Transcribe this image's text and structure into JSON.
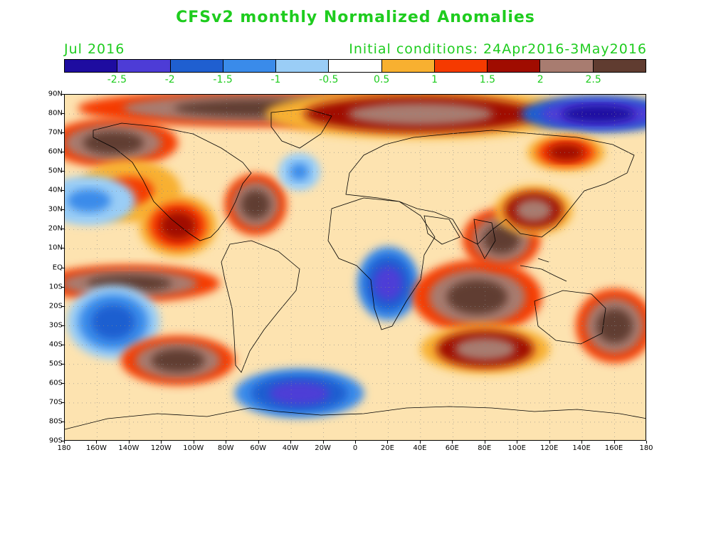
{
  "title": "CFSv2 monthly Normalized Anomalies",
  "subtitle_left": "Jul 2016",
  "subtitle_right": "Initial conditions: 24Apr2016-3May2016",
  "colorbar": {
    "colors": [
      "#1e0ca0",
      "#4d3cd6",
      "#1f5fd0",
      "#3a8bea",
      "#9acdf6",
      "#ffffff",
      "#f8b030",
      "#f53a00",
      "#a00c00",
      "#a87c70",
      "#603c30"
    ],
    "labels": [
      "-2.5",
      "-2",
      "-1.5",
      "-1",
      "-0.5",
      "0.5",
      "1",
      "1.5",
      "2",
      "2.5"
    ]
  },
  "lat_labels": [
    "90N",
    "80N",
    "70N",
    "60N",
    "50N",
    "40N",
    "30N",
    "20N",
    "10N",
    "EQ",
    "10S",
    "20S",
    "30S",
    "40S",
    "50S",
    "60S",
    "70S",
    "80S",
    "90S"
  ],
  "lon_labels": [
    "180",
    "160W",
    "140W",
    "120W",
    "100W",
    "80W",
    "60W",
    "40W",
    "20W",
    "0",
    "20E",
    "40E",
    "60E",
    "80E",
    "100E",
    "120E",
    "140E",
    "160E",
    "180"
  ],
  "anomaly_regions": [
    {
      "name": "arctic-warm",
      "lon": -60,
      "lat": 83,
      "rx": 70,
      "ry": 6,
      "level": 10
    },
    {
      "name": "arctic-siberia-warm",
      "lon": 40,
      "lat": 80,
      "rx": 60,
      "ry": 8,
      "level": 9
    },
    {
      "name": "arctic-east-cold",
      "lon": 150,
      "lat": 80,
      "rx": 30,
      "ry": 6,
      "level": 0
    },
    {
      "name": "alaska-warm",
      "lon": -150,
      "lat": 65,
      "rx": 25,
      "ry": 8,
      "level": 10
    },
    {
      "name": "ne-pacific-warm",
      "lon": -140,
      "lat": 40,
      "rx": 20,
      "ry": 10,
      "level": 7
    },
    {
      "name": "n-pacific-cold",
      "lon": -165,
      "lat": 35,
      "rx": 18,
      "ry": 8,
      "level": 3
    },
    {
      "name": "mexico-warm",
      "lon": -110,
      "lat": 22,
      "rx": 15,
      "ry": 10,
      "level": 8
    },
    {
      "name": "nw-atlantic-warm",
      "lon": -62,
      "lat": 33,
      "rx": 12,
      "ry": 10,
      "level": 10
    },
    {
      "name": "tropical-pacific-warm",
      "lon": -140,
      "lat": -8,
      "rx": 35,
      "ry": 6,
      "level": 10
    },
    {
      "name": "se-pacific-cold",
      "lon": -150,
      "lat": -28,
      "rx": 18,
      "ry": 12,
      "level": 2
    },
    {
      "name": "s-pacific-warm",
      "lon": -110,
      "lat": -48,
      "rx": 22,
      "ry": 8,
      "level": 10
    },
    {
      "name": "s-atlantic-cold",
      "lon": -35,
      "lat": -65,
      "rx": 25,
      "ry": 8,
      "level": 1
    },
    {
      "name": "africa-cold",
      "lon": 20,
      "lat": -8,
      "rx": 12,
      "ry": 12,
      "level": 1
    },
    {
      "name": "indian-ocean-warm",
      "lon": 75,
      "lat": -15,
      "rx": 25,
      "ry": 12,
      "level": 10
    },
    {
      "name": "s-indian-warm",
      "lon": 80,
      "lat": -42,
      "rx": 25,
      "ry": 8,
      "level": 9
    },
    {
      "name": "india-warm",
      "lon": 90,
      "lat": 15,
      "rx": 15,
      "ry": 10,
      "level": 10
    },
    {
      "name": "china-warm",
      "lon": 110,
      "lat": 30,
      "rx": 15,
      "ry": 8,
      "level": 9
    },
    {
      "name": "australia-east-warm",
      "lon": 160,
      "lat": -30,
      "rx": 15,
      "ry": 12,
      "level": 10
    },
    {
      "name": "n-atlantic-cold",
      "lon": -35,
      "lat": 50,
      "rx": 8,
      "ry": 6,
      "level": 3
    },
    {
      "name": "siberia-warm",
      "lon": 130,
      "lat": 60,
      "rx": 15,
      "ry": 6,
      "level": 8
    }
  ]
}
